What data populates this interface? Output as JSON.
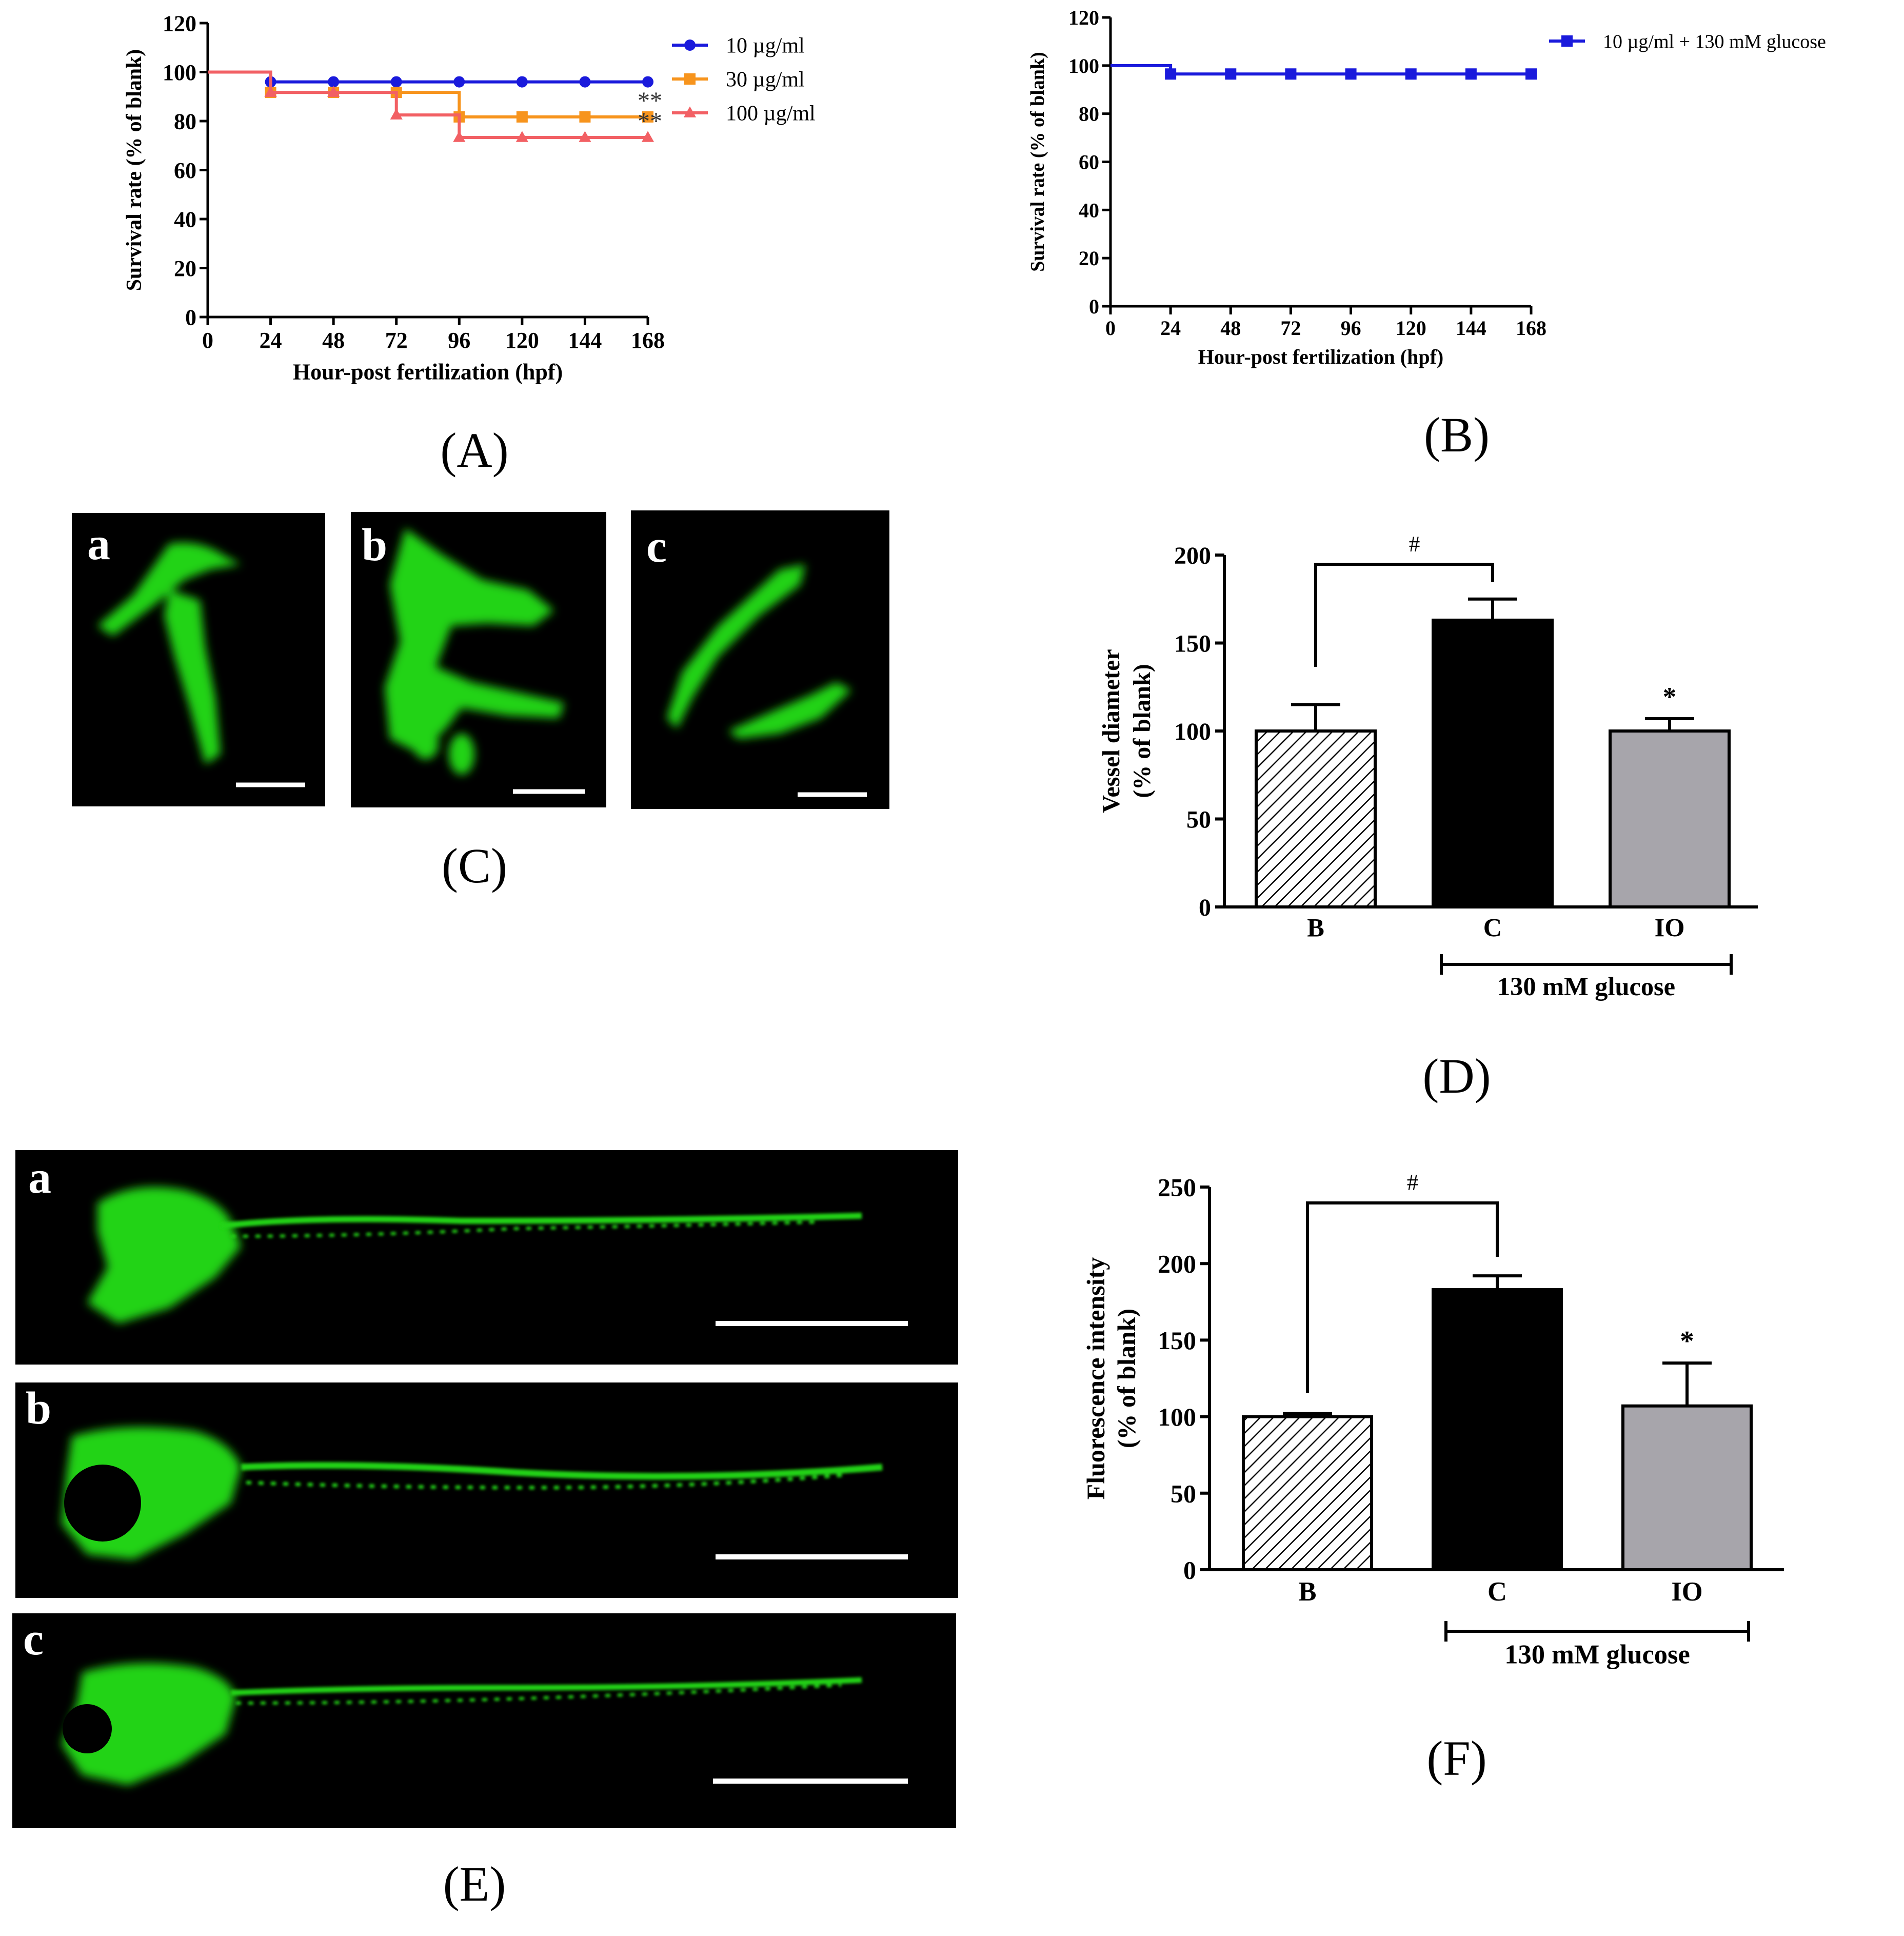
{
  "colors": {
    "blue": "#1a1adc",
    "orange": "#f7941d",
    "red": "#f26064",
    "gray_bar": "#a7a5ab",
    "black": "#000000",
    "fluorescence_green": "#22d318",
    "micrograph_bg": "#000000"
  },
  "panel_labels": {
    "A": "(A)",
    "B": "(B)",
    "C": "(C)",
    "D": "(D)",
    "E": "(E)",
    "F": "(F)"
  },
  "chart_data": [
    {
      "id": "A",
      "type": "line",
      "style": "survival-step",
      "xlabel": "Hour-post fertilization (hpf)",
      "ylabel": "Survival rate (% of blank)",
      "x": [
        0,
        24,
        48,
        72,
        96,
        120,
        144,
        168
      ],
      "xlim": [
        0,
        168
      ],
      "ylim": [
        0,
        120
      ],
      "xticks": [
        0,
        24,
        48,
        72,
        96,
        120,
        144,
        168
      ],
      "yticks": [
        0,
        20,
        40,
        60,
        80,
        100,
        120
      ],
      "legend_position": "top-right",
      "series": [
        {
          "name": "10 µg/ml",
          "color": "#1a1adc",
          "marker": "circle",
          "values": [
            100,
            96,
            96,
            96,
            96,
            96,
            96,
            96
          ]
        },
        {
          "name": "30 µg/ml",
          "color": "#f7941d",
          "marker": "square",
          "values": [
            100,
            91.7,
            91.7,
            91.7,
            81.7,
            81.7,
            81.7,
            81.7
          ]
        },
        {
          "name": "100 µg/ml",
          "color": "#f26064",
          "marker": "triangle",
          "values": [
            100,
            91.7,
            91.7,
            82.5,
            73.3,
            73.3,
            73.3,
            73.3
          ]
        }
      ],
      "annotations": [
        {
          "text": "**",
          "series": 1,
          "x": 168
        },
        {
          "text": "**",
          "series": 2,
          "x": 168
        }
      ]
    },
    {
      "id": "B",
      "type": "line",
      "style": "survival-step",
      "xlabel": "Hour-post fertilization (hpf)",
      "ylabel": "Survival rate (% of blank)",
      "x": [
        0,
        24,
        48,
        72,
        96,
        120,
        144,
        168
      ],
      "xlim": [
        0,
        168
      ],
      "ylim": [
        0,
        120
      ],
      "xticks": [
        0,
        24,
        48,
        72,
        96,
        120,
        144,
        168
      ],
      "yticks": [
        0,
        20,
        40,
        60,
        80,
        100,
        120
      ],
      "legend_position": "top-right",
      "series": [
        {
          "name": "10 µg/ml + 130 mM glucose",
          "color": "#1a1adc",
          "marker": "square",
          "values": [
            100,
            96.5,
            96.5,
            96.5,
            96.5,
            96.5,
            96.5,
            96.5
          ]
        }
      ]
    },
    {
      "id": "D",
      "type": "bar",
      "ylabel": [
        "Vessel diameter",
        "(% of blank)"
      ],
      "categories": [
        "B",
        "C",
        "IO"
      ],
      "values": [
        100,
        163,
        100
      ],
      "errors": [
        15,
        12,
        7
      ],
      "fills": [
        "hatch",
        "#000000",
        "#a7a5ab"
      ],
      "ylim": [
        0,
        200
      ],
      "yticks": [
        0,
        50,
        100,
        150,
        200
      ],
      "group_label": "130 mM glucose",
      "significance": {
        "bracket": "#",
        "star": "*",
        "star_category": "IO"
      }
    },
    {
      "id": "F",
      "type": "bar",
      "ylabel": [
        "Fluorescence intensity",
        "(% of blank)"
      ],
      "categories": [
        "B",
        "C",
        "IO"
      ],
      "values": [
        100,
        183,
        107
      ],
      "errors": [
        2,
        9,
        28
      ],
      "fills": [
        "hatch",
        "#000000",
        "#a7a5ab"
      ],
      "ylim": [
        0,
        250
      ],
      "yticks": [
        0,
        50,
        100,
        150,
        200,
        250
      ],
      "group_label": "130 mM glucose",
      "significance": {
        "bracket": "#",
        "star": "*",
        "star_category": "IO"
      }
    }
  ],
  "images": {
    "C": {
      "content": "green-fluorescent-vessels",
      "sub_labels": [
        "a",
        "b",
        "c"
      ]
    },
    "E": {
      "content": "green-fluorescent-zebrafish-larva",
      "sub_labels": [
        "a",
        "b",
        "c"
      ]
    }
  }
}
